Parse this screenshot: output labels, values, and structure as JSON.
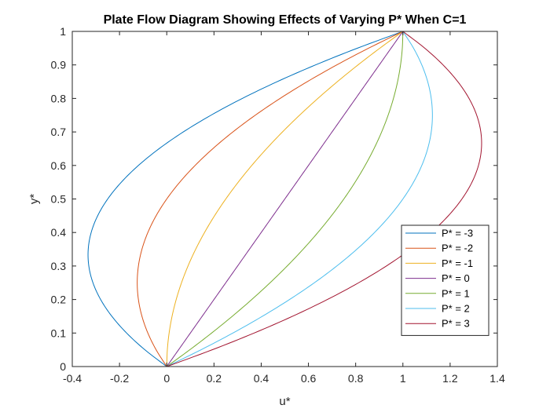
{
  "chart_data": {
    "type": "line",
    "title": "Plate Flow Diagram Showing Effects of Varying P* When C=1",
    "xlabel": "u*",
    "ylabel": "y*",
    "xlim": [
      -0.4,
      1.4
    ],
    "ylim": [
      0,
      1
    ],
    "xticks": [
      -0.4,
      -0.2,
      0,
      0.2,
      0.4,
      0.6,
      0.8,
      1,
      1.2,
      1.4
    ],
    "xtick_labels": [
      "-0.4",
      "-0.2",
      "0",
      "0.2",
      "0.4",
      "0.6",
      "0.8",
      "1",
      "1.2",
      "1.4"
    ],
    "yticks": [
      0,
      0.1,
      0.2,
      0.3,
      0.4,
      0.5,
      0.6,
      0.7,
      0.8,
      0.9,
      1
    ],
    "ytick_labels": [
      "0",
      "0.1",
      "0.2",
      "0.3",
      "0.4",
      "0.5",
      "0.6",
      "0.7",
      "0.8",
      "0.9",
      "1"
    ],
    "grid": false,
    "legend_position": "bottom-right",
    "y": [
      0,
      0.05,
      0.1,
      0.15,
      0.2,
      0.25,
      0.3,
      0.35,
      0.4,
      0.45,
      0.5,
      0.55,
      0.6,
      0.65,
      0.7,
      0.75,
      0.8,
      0.85,
      0.9,
      0.95,
      1
    ],
    "series": [
      {
        "name": "P* = -3",
        "color": "#0072BD",
        "x": [
          0,
          -0.0925,
          -0.17,
          -0.2325,
          -0.28,
          -0.3125,
          -0.33,
          -0.3325,
          -0.32,
          -0.2925,
          -0.25,
          -0.1925,
          -0.12,
          -0.0325,
          0.07,
          0.1875,
          0.32,
          0.4675,
          0.63,
          0.8075,
          1
        ]
      },
      {
        "name": "P* = -2",
        "color": "#D95319",
        "x": [
          0,
          -0.045,
          -0.08,
          -0.105,
          -0.12,
          -0.125,
          -0.12,
          -0.105,
          -0.08,
          -0.045,
          0,
          0.055,
          0.12,
          0.195,
          0.28,
          0.375,
          0.48,
          0.595,
          0.72,
          0.855,
          1
        ]
      },
      {
        "name": "P* = -1",
        "color": "#EDB120",
        "x": [
          0,
          0.0025,
          0.01,
          0.0225,
          0.04,
          0.0625,
          0.09,
          0.1225,
          0.16,
          0.2025,
          0.25,
          0.3025,
          0.36,
          0.4225,
          0.49,
          0.5625,
          0.64,
          0.7225,
          0.81,
          0.9025,
          1
        ]
      },
      {
        "name": "P* = 0",
        "color": "#7E2F8E",
        "x": [
          0,
          0.05,
          0.1,
          0.15,
          0.2,
          0.25,
          0.3,
          0.35,
          0.4,
          0.45,
          0.5,
          0.55,
          0.6,
          0.65,
          0.7,
          0.75,
          0.8,
          0.85,
          0.9,
          0.95,
          1
        ]
      },
      {
        "name": "P* = 1",
        "color": "#77AC30",
        "x": [
          0,
          0.0975,
          0.19,
          0.2775,
          0.36,
          0.4375,
          0.51,
          0.5775,
          0.64,
          0.6975,
          0.75,
          0.7975,
          0.84,
          0.8775,
          0.91,
          0.9375,
          0.96,
          0.9775,
          0.99,
          0.9975,
          1
        ]
      },
      {
        "name": "P* = 2",
        "color": "#4DBEEE",
        "x": [
          0,
          0.145,
          0.28,
          0.405,
          0.52,
          0.625,
          0.72,
          0.805,
          0.88,
          0.945,
          1,
          1.045,
          1.08,
          1.105,
          1.12,
          1.125,
          1.12,
          1.105,
          1.08,
          1.045,
          1
        ]
      },
      {
        "name": "P* = 3",
        "color": "#A2142F",
        "x": [
          0,
          0.1925,
          0.37,
          0.5325,
          0.68,
          0.8125,
          0.93,
          1.0325,
          1.12,
          1.1925,
          1.25,
          1.2925,
          1.32,
          1.3325,
          1.33,
          1.3125,
          1.28,
          1.2325,
          1.17,
          1.0925,
          1
        ]
      }
    ]
  }
}
